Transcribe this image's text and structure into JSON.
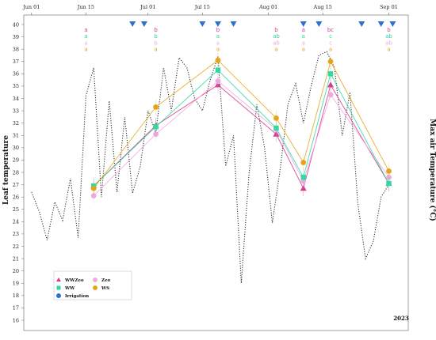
{
  "chart_data": {
    "type": "line",
    "x_ticks": [
      "Jun 01",
      "Jun 15",
      "Jul 01",
      "Jul 15",
      "Aug 01",
      "Aug 15",
      "Sep 01"
    ],
    "ylabel_left": "Leaf temperature",
    "ylabel_right": "Max air Temperature (°C)",
    "ylim": [
      16,
      40
    ],
    "y_ticks": [
      16,
      17,
      18,
      19,
      20,
      21,
      22,
      23,
      24,
      25,
      26,
      27,
      28,
      29,
      30,
      31,
      32,
      33,
      34,
      35,
      36,
      37,
      38,
      39,
      40
    ],
    "year_label": "2023",
    "legend_placement": "bottom-left",
    "legend": [
      {
        "name": "WWZeo",
        "color": "#d63a8e",
        "marker": "triangle"
      },
      {
        "name": "Zeo",
        "color": "#f0a8e0",
        "marker": "circle"
      },
      {
        "name": "WW",
        "color": "#2fd9a3",
        "marker": "square"
      },
      {
        "name": "WS",
        "color": "#e6a519",
        "marker": "circle"
      },
      {
        "name": "Irrigation",
        "color": "#2c6fd6",
        "marker": "circle"
      }
    ],
    "x": [
      "2023-06-17",
      "2023-07-03",
      "2023-07-19",
      "2023-08-03",
      "2023-08-10",
      "2023-08-17",
      "2023-09-01"
    ],
    "series": [
      {
        "name": "WWZeo",
        "color": "#d63a8e",
        "values": [
          26.9,
          31.8,
          35.1,
          31.1,
          26.7,
          35.1,
          27.1
        ]
      },
      {
        "name": "Zeo",
        "color": "#f0a8e0",
        "values": [
          26.1,
          31.1,
          35.4,
          31.5,
          27.3,
          34.3,
          27.6
        ]
      },
      {
        "name": "WW",
        "color": "#2fd9a3",
        "values": [
          26.9,
          31.7,
          36.3,
          31.6,
          27.6,
          36.0,
          27.1
        ]
      },
      {
        "name": "WS",
        "color": "#e6a519",
        "values": [
          26.7,
          33.3,
          37.1,
          32.4,
          28.8,
          37.0,
          28.1
        ]
      }
    ],
    "max_air_temperature": {
      "style": "dotted",
      "color": "#333333",
      "dates": [
        "2023-06-01",
        "2023-06-03",
        "2023-06-05",
        "2023-06-07",
        "2023-06-09",
        "2023-06-11",
        "2023-06-13",
        "2023-06-15",
        "2023-06-17",
        "2023-06-19",
        "2023-06-21",
        "2023-06-23",
        "2023-06-25",
        "2023-06-27",
        "2023-06-29",
        "2023-07-01",
        "2023-07-03",
        "2023-07-05",
        "2023-07-07",
        "2023-07-09",
        "2023-07-11",
        "2023-07-13",
        "2023-07-15",
        "2023-07-17",
        "2023-07-19",
        "2023-07-21",
        "2023-07-23",
        "2023-07-25",
        "2023-07-27",
        "2023-07-29",
        "2023-07-31",
        "2023-08-02",
        "2023-08-04",
        "2023-08-06",
        "2023-08-08",
        "2023-08-10",
        "2023-08-12",
        "2023-08-14",
        "2023-08-16",
        "2023-08-18",
        "2023-08-20",
        "2023-08-22",
        "2023-08-24",
        "2023-08-26",
        "2023-08-28",
        "2023-08-30",
        "2023-09-01"
      ],
      "values": [
        26.4,
        24.8,
        22.5,
        25.6,
        24.1,
        27.5,
        22.7,
        34.2,
        36.5,
        26.0,
        33.8,
        26.4,
        32.5,
        26.3,
        28.5,
        33.0,
        31.2,
        36.5,
        33.0,
        37.3,
        36.5,
        34.0,
        33.0,
        35.5,
        37.4,
        28.5,
        31.0,
        19.0,
        27.9,
        33.5,
        30.0,
        23.9,
        28.2,
        33.5,
        35.2,
        32.0,
        35.0,
        37.5,
        37.8,
        36.5,
        31.0,
        34.5,
        25.5,
        21.0,
        22.4,
        26.0,
        27.0
      ]
    },
    "irrigation_events": [
      "2023-06-27",
      "2023-06-30",
      "2023-07-15",
      "2023-07-19",
      "2023-07-23",
      "2023-08-10",
      "2023-08-14",
      "2023-08-25",
      "2023-08-30",
      "2023-09-02"
    ],
    "significance_letters": [
      {
        "date": "2023-06-15",
        "letters": [
          "a",
          "a",
          "a",
          "a"
        ]
      },
      {
        "date": "2023-07-03",
        "letters": [
          "b",
          "b",
          "b",
          "a"
        ]
      },
      {
        "date": "2023-07-19",
        "letters": [
          "b",
          "a",
          "a",
          "a"
        ]
      },
      {
        "date": "2023-08-03",
        "letters": [
          "b",
          "ab",
          "ab",
          "a"
        ]
      },
      {
        "date": "2023-08-10",
        "letters": [
          "a",
          "a",
          "a",
          "a"
        ]
      },
      {
        "date": "2023-08-17",
        "letters": [
          "bc",
          "c",
          "c",
          "a"
        ]
      },
      {
        "date": "2023-09-01",
        "letters": [
          "b",
          "ab",
          "ab",
          "a"
        ]
      }
    ]
  }
}
